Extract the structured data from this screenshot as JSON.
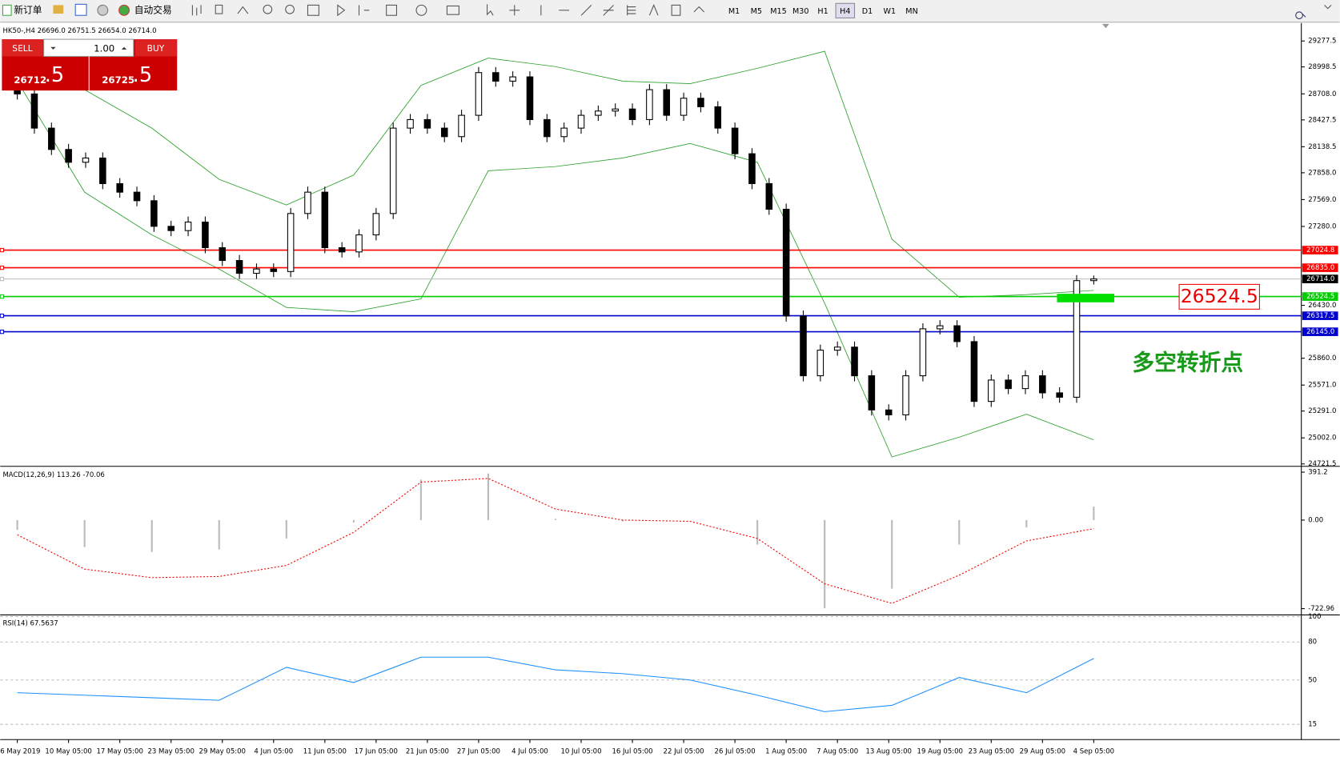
{
  "toolbar": {
    "new_order": "新订单",
    "auto_trading": "自动交易",
    "timeframes": [
      "M1",
      "M5",
      "M15",
      "M30",
      "H1",
      "H4",
      "D1",
      "W1",
      "MN"
    ],
    "active_timeframe": "H4"
  },
  "trade_panel": {
    "sell": "SELL",
    "buy": "BUY",
    "lots": "1.00",
    "sell_price": "26712",
    "sell_frac": ".5",
    "buy_price": "26725",
    "buy_frac": ".5"
  },
  "chart_data": [
    {
      "type": "candlestick",
      "symbol_info": "HK50-,H4  26696.0 26751.5 26654.0 26714.0",
      "open": [
        28800,
        28707,
        28339,
        28109,
        27971,
        28017,
        27741,
        27649,
        27557,
        27281,
        27235,
        27327,
        27051,
        26913,
        26775,
        26821,
        26794,
        27419,
        27649,
        27051,
        27005,
        27189,
        27419,
        28339,
        28431,
        28339,
        28247,
        28477,
        28937,
        28845,
        28891,
        28431,
        28247,
        28339,
        28477,
        28523,
        28545,
        28431,
        28753,
        28477,
        28661,
        28569,
        28339,
        28063,
        27741,
        27465,
        26315,
        25671,
        25947,
        25980,
        25671,
        25303,
        25250,
        25671,
        26177,
        26210,
        26039,
        25395,
        25625,
        25533,
        25671,
        25487,
        25440,
        26696
      ],
      "high": [
        28860,
        28767,
        28399,
        28169,
        28077,
        28077,
        27801,
        27709,
        27617,
        27341,
        27387,
        27387,
        27111,
        26973,
        26881,
        26881,
        27479,
        27709,
        27709,
        27111,
        27249,
        27479,
        28399,
        28491,
        28491,
        28399,
        28537,
        28997,
        28997,
        28951,
        28951,
        28491,
        28399,
        28537,
        28583,
        28605,
        28605,
        28813,
        28813,
        28721,
        28721,
        28629,
        28399,
        28123,
        27801,
        27525,
        26375,
        26007,
        26040,
        26040,
        25731,
        25363,
        25731,
        26237,
        26270,
        26270,
        26099,
        25685,
        25685,
        25731,
        25731,
        25547,
        26756,
        26751.5
      ],
      "low": [
        28647,
        28279,
        28049,
        27911,
        27911,
        27681,
        27589,
        27497,
        27221,
        27175,
        27175,
        26991,
        26853,
        26715,
        26715,
        26734,
        26734,
        27359,
        26991,
        26945,
        26945,
        27129,
        27359,
        28279,
        28279,
        28187,
        28187,
        28417,
        28785,
        28785,
        28371,
        28187,
        28187,
        28279,
        28417,
        28463,
        28371,
        28371,
        28417,
        28417,
        28509,
        28279,
        28003,
        27681,
        27405,
        26255,
        25611,
        25611,
        25887,
        25611,
        25243,
        25190,
        25190,
        25611,
        26117,
        25979,
        25335,
        25335,
        25473,
        25473,
        25427,
        25380,
        25380,
        26654
      ],
      "close": [
        28707,
        28339,
        28109,
        27971,
        28017,
        27741,
        27649,
        27557,
        27281,
        27235,
        27327,
        27051,
        26913,
        26775,
        26821,
        26794,
        27419,
        27649,
        27051,
        27005,
        27189,
        27419,
        28339,
        28431,
        28339,
        28247,
        28477,
        28937,
        28845,
        28891,
        28431,
        28247,
        28339,
        28477,
        28523,
        28545,
        28431,
        28753,
        28477,
        28661,
        28569,
        28339,
        28063,
        27741,
        27465,
        26315,
        25671,
        25947,
        25980,
        25671,
        25303,
        25250,
        25671,
        26177,
        26210,
        26039,
        25395,
        25625,
        25533,
        25671,
        25487,
        25440,
        26696,
        26714
      ],
      "bands": {
        "color": "#2ca02c",
        "upper": [
          29167,
          28753,
          28339,
          27787,
          27511,
          27833,
          28799,
          29093.5,
          29001.5,
          28845,
          28817.5,
          28983,
          29167,
          27143,
          26517.5,
          26545,
          26591
        ],
        "lower": [
          28845,
          27649,
          27189,
          26821,
          26407,
          26361,
          26499,
          27879,
          27925,
          28017,
          28173.5,
          27971,
          26453,
          24797,
          25009,
          25257,
          24981
        ]
      },
      "ylim": [
        24705,
        29461.5
      ],
      "yticks": [
        29277.5,
        28998.5,
        {
          "value": 28708,
          "label": "28708.0"
        },
        28427.5,
        28138.5,
        {
          "value": 27858,
          "label": "27858.0"
        },
        {
          "value": 27569,
          "label": "27569.0"
        },
        {
          "value": 27280,
          "label": "27280.0"
        },
        {
          "value": 26430,
          "label": "26430.0"
        },
        {
          "value": 25860,
          "label": "25860.0"
        },
        {
          "value": 25571,
          "label": "25571.0"
        },
        {
          "value": 25291,
          "label": "25291.0"
        },
        {
          "value": 25002,
          "label": "25002.0"
        },
        24721.5
      ],
      "levels": [
        {
          "value": 27024.8,
          "color": "#ff0000"
        },
        {
          "value": 26835,
          "label": "26835.0",
          "color": "#ff0000"
        },
        {
          "value": 26524.5,
          "color": "#00cc00"
        },
        {
          "value": 26317.5,
          "color": "#0000cc"
        },
        {
          "value": 26145,
          "label": "26145.0",
          "color": "#0000cc"
        }
      ],
      "current": {
        "value": 26714,
        "label": "26714.0"
      },
      "annotation": {
        "price_label": "26524.5",
        "text": "多空转折点"
      },
      "x_labels": [
        "6 May 2019",
        "10 May 05:00",
        "17 May 05:00",
        "23 May 05:00",
        "29 May 05:00",
        "4 Jun 05:00",
        "11 Jun 05:00",
        "17 Jun 05:00",
        "21 Jun 05:00",
        "27 Jun 05:00",
        "4 Jul 05:00",
        "10 Jul 05:00",
        "16 Jul 05:00",
        "22 Jul 05:00",
        "26 Jul 05:00",
        "1 Aug 05:00",
        "7 Aug 05:00",
        "13 Aug 05:00",
        "19 Aug 05:00",
        "23 Aug 05:00",
        "29 Aug 05:00",
        "4 Sep 05:00"
      ]
    },
    {
      "type": "macd",
      "title": "MACD(12,26,9) 113.26 -70.06",
      "histogram": [
        -80,
        -220,
        -260,
        -240,
        -150,
        -20,
        330,
        380,
        10,
        -10,
        0,
        -200,
        -720,
        -560,
        -200,
        -60,
        110
      ],
      "signal": [
        -120,
        -400,
        -470,
        -460,
        -370,
        -100,
        310,
        340,
        90,
        0,
        -10,
        -150,
        -520,
        -680,
        -450,
        -170,
        -70
      ],
      "ylim": [
        -760,
        425
      ],
      "yticks": [
        391.2,
        {
          "value": 0,
          "label": "0.00"
        },
        -722.96
      ]
    },
    {
      "type": "rsi",
      "title": "RSI(14) 67.5637",
      "values": [
        40,
        38,
        36,
        34,
        60,
        48,
        68,
        68,
        58,
        55,
        50,
        38,
        25,
        30,
        52,
        40,
        67
      ],
      "color": "#1e90ff",
      "ylim": [
        5,
        100
      ],
      "yticks": [
        100,
        80,
        50,
        15
      ]
    }
  ]
}
